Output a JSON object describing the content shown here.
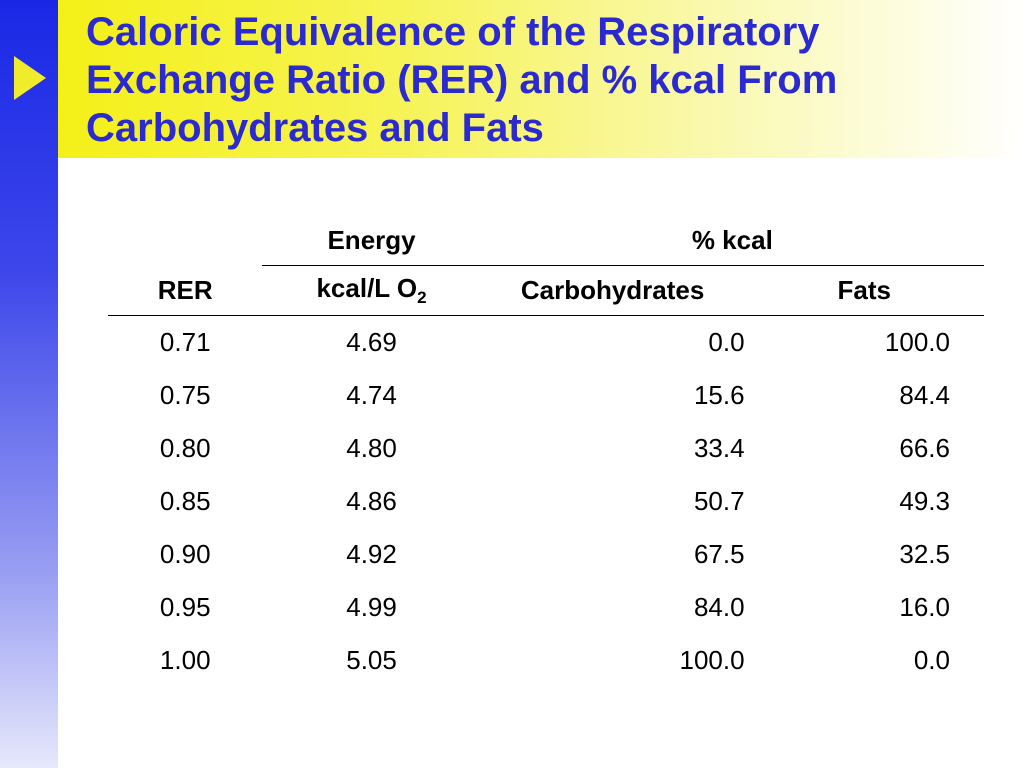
{
  "slide": {
    "title": "Caloric Equivalence of the Respiratory Exchange Ratio (RER) and % kcal From Carbohydrates and Fats"
  },
  "table": {
    "group_headers": {
      "energy": "Energy",
      "pct_kcal": "% kcal"
    },
    "column_headers": {
      "rer": "RER",
      "energy_unit": "kcal/L O",
      "energy_unit_subscript": "2",
      "carbohydrates": "Carbohydrates",
      "fats": "Fats"
    },
    "rows": [
      {
        "rer": "0.71",
        "energy": "4.69",
        "carbohydrates": "0.0",
        "fats": "100.0"
      },
      {
        "rer": "0.75",
        "energy": "4.74",
        "carbohydrates": "15.6",
        "fats": "84.4"
      },
      {
        "rer": "0.80",
        "energy": "4.80",
        "carbohydrates": "33.4",
        "fats": "66.6"
      },
      {
        "rer": "0.85",
        "energy": "4.86",
        "carbohydrates": "50.7",
        "fats": "49.3"
      },
      {
        "rer": "0.90",
        "energy": "4.92",
        "carbohydrates": "67.5",
        "fats": "32.5"
      },
      {
        "rer": "0.95",
        "energy": "4.99",
        "carbohydrates": "84.0",
        "fats": "16.0"
      },
      {
        "rer": "1.00",
        "energy": "5.05",
        "carbohydrates": "100.0",
        "fats": "0.0"
      }
    ]
  },
  "colors": {
    "title_text": "#2a2ad0",
    "side_bar": "#1a28e6",
    "title_band": "#f4f018",
    "arrow": "#f0ec2c"
  }
}
